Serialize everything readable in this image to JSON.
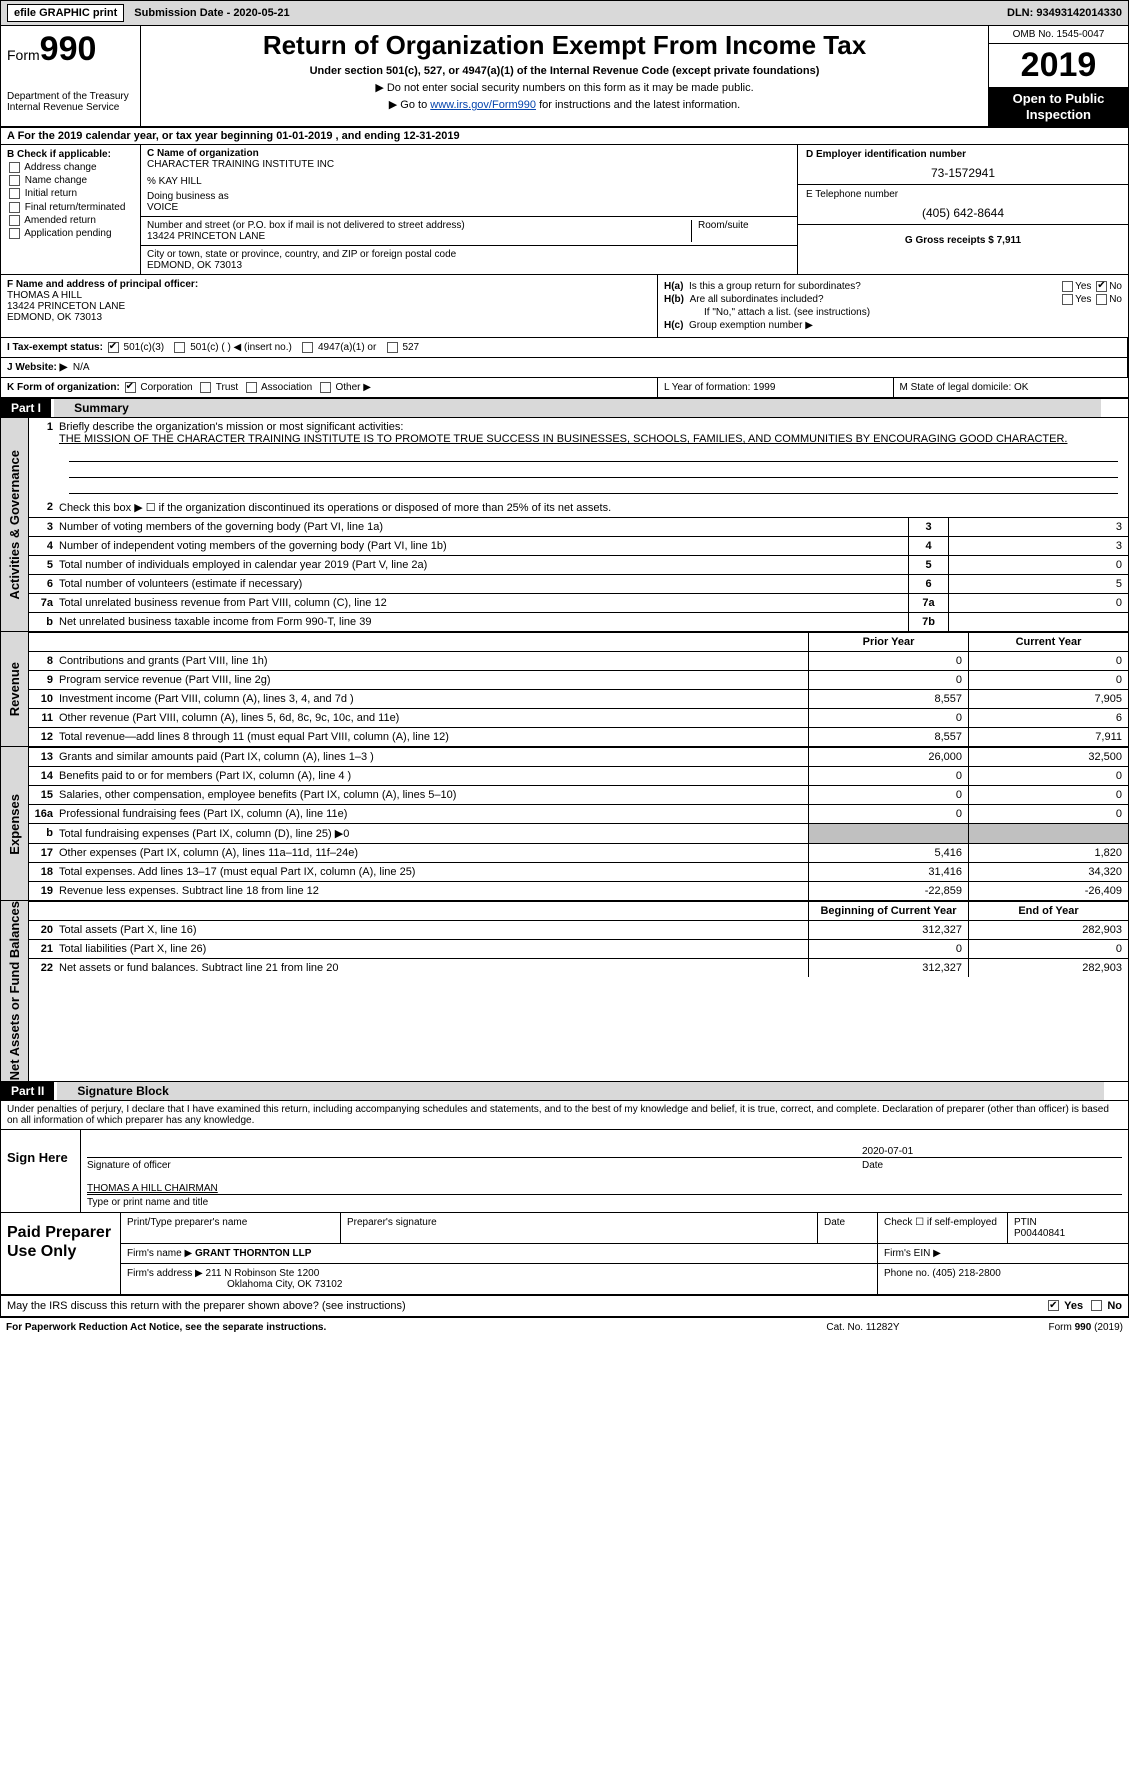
{
  "topbar": {
    "efile_label": "efile GRAPHIC print",
    "submission_label": "Submission Date - 2020-05-21",
    "dln": "DLN: 93493142014330"
  },
  "header": {
    "form_label": "Form",
    "form_number": "990",
    "dept": "Department of the Treasury",
    "irs": "Internal Revenue Service",
    "title": "Return of Organization Exempt From Income Tax",
    "subtitle": "Under section 501(c), 527, or 4947(a)(1) of the Internal Revenue Code (except private foundations)",
    "note1": "▶ Do not enter social security numbers on this form as it may be made public.",
    "note2_prefix": "▶ Go to ",
    "note2_link": "www.irs.gov/Form990",
    "note2_suffix": " for instructions and the latest information.",
    "omb": "OMB No. 1545-0047",
    "tax_year": "2019",
    "open_public": "Open to Public Inspection"
  },
  "row_a": "A   For the 2019 calendar year, or tax year beginning 01-01-2019       , and ending 12-31-2019",
  "col_b": {
    "heading": "B Check if applicable:",
    "opts": [
      "Address change",
      "Name change",
      "Initial return",
      "Final return/terminated",
      "Amended return",
      "Application pending"
    ]
  },
  "col_c": {
    "c_label": "C Name of organization",
    "org_name": "CHARACTER TRAINING INSTITUTE INC",
    "care_of": "% KAY HILL",
    "dba_label": "Doing business as",
    "dba": "VOICE",
    "street_label": "Number and street (or P.O. box if mail is not delivered to street address)",
    "room_label": "Room/suite",
    "street": "13424 PRINCETON LANE",
    "city_label": "City or town, state or province, country, and ZIP or foreign postal code",
    "city": "EDMOND, OK  73013"
  },
  "col_de": {
    "d_label": "D Employer identification number",
    "ein": "73-1572941",
    "e_label": "E Telephone number",
    "phone": "(405) 642-8644",
    "g_label": "G Gross receipts $ 7,911"
  },
  "col_f": {
    "label": "F  Name and address of principal officer:",
    "name": "THOMAS A HILL",
    "street": "13424 PRINCETON LANE",
    "city": "EDMOND, OK  73013"
  },
  "col_h": {
    "ha_label": "H(a)",
    "ha_text": "Is this a group return for subordinates?",
    "hb_label": "H(b)",
    "hb_text": "Are all subordinates included?",
    "hb_note": "If \"No,\" attach a list. (see instructions)",
    "hc_label": "H(c)",
    "hc_text": "Group exemption number ▶",
    "yes": "Yes",
    "no": "No"
  },
  "row_i": {
    "label": "I    Tax-exempt status:",
    "opts": [
      "501(c)(3)",
      "501(c) (  ) ◀ (insert no.)",
      "4947(a)(1) or",
      "527"
    ]
  },
  "row_j": {
    "label": "J   Website: ▶",
    "value": "N/A"
  },
  "row_k": {
    "label": "K Form of organization:",
    "opts": [
      "Corporation",
      "Trust",
      "Association",
      "Other ▶"
    ]
  },
  "col_l": {
    "text": "L Year of formation: 1999"
  },
  "col_m": {
    "text": "M State of legal domicile: OK"
  },
  "part1": {
    "tag": "Part I",
    "title": "Summary"
  },
  "summary": {
    "l1_label": "Briefly describe the organization's mission or most significant activities:",
    "l1_text": "THE MISSION OF THE CHARACTER TRAINING INSTITUTE IS TO PROMOTE TRUE SUCCESS IN BUSINESSES, SCHOOLS, FAMILIES, AND COMMUNITIES BY ENCOURAGING GOOD CHARACTER.",
    "l2": "Check this box ▶ ☐  if the organization discontinued its operations or disposed of more than 25% of its net assets.",
    "l3": {
      "t": "Number of voting members of the governing body (Part VI, line 1a)",
      "n": "3",
      "v": "3"
    },
    "l4": {
      "t": "Number of independent voting members of the governing body (Part VI, line 1b)",
      "n": "4",
      "v": "3"
    },
    "l5": {
      "t": "Total number of individuals employed in calendar year 2019 (Part V, line 2a)",
      "n": "5",
      "v": "0"
    },
    "l6": {
      "t": "Total number of volunteers (estimate if necessary)",
      "n": "6",
      "v": "5"
    },
    "l7a": {
      "t": "Total unrelated business revenue from Part VIII, column (C), line 12",
      "n": "7a",
      "v": "0"
    },
    "l7b": {
      "t": "Net unrelated business taxable income from Form 990-T, line 39",
      "n": "7b",
      "v": ""
    }
  },
  "fin_headers": {
    "prior": "Prior Year",
    "curr": "Current Year",
    "boy": "Beginning of Current Year",
    "eoy": "End of Year"
  },
  "revenue": [
    {
      "n": "8",
      "t": "Contributions and grants (Part VIII, line 1h)",
      "p": "0",
      "c": "0"
    },
    {
      "n": "9",
      "t": "Program service revenue (Part VIII, line 2g)",
      "p": "0",
      "c": "0"
    },
    {
      "n": "10",
      "t": "Investment income (Part VIII, column (A), lines 3, 4, and 7d )",
      "p": "8,557",
      "c": "7,905"
    },
    {
      "n": "11",
      "t": "Other revenue (Part VIII, column (A), lines 5, 6d, 8c, 9c, 10c, and 11e)",
      "p": "0",
      "c": "6"
    },
    {
      "n": "12",
      "t": "Total revenue—add lines 8 through 11 (must equal Part VIII, column (A), line 12)",
      "p": "8,557",
      "c": "7,911"
    }
  ],
  "expenses": [
    {
      "n": "13",
      "t": "Grants and similar amounts paid (Part IX, column (A), lines 1–3 )",
      "p": "26,000",
      "c": "32,500"
    },
    {
      "n": "14",
      "t": "Benefits paid to or for members (Part IX, column (A), line 4 )",
      "p": "0",
      "c": "0"
    },
    {
      "n": "15",
      "t": "Salaries, other compensation, employee benefits (Part IX, column (A), lines 5–10)",
      "p": "0",
      "c": "0"
    },
    {
      "n": "16a",
      "t": "Professional fundraising fees (Part IX, column (A), line 11e)",
      "p": "0",
      "c": "0"
    },
    {
      "n": "b",
      "t": "Total fundraising expenses (Part IX, column (D), line 25) ▶0",
      "p": "",
      "c": "",
      "grey": true
    },
    {
      "n": "17",
      "t": "Other expenses (Part IX, column (A), lines 11a–11d, 11f–24e)",
      "p": "5,416",
      "c": "1,820"
    },
    {
      "n": "18",
      "t": "Total expenses. Add lines 13–17 (must equal Part IX, column (A), line 25)",
      "p": "31,416",
      "c": "34,320"
    },
    {
      "n": "19",
      "t": "Revenue less expenses. Subtract line 18 from line 12",
      "p": "-22,859",
      "c": "-26,409"
    }
  ],
  "netassets": [
    {
      "n": "20",
      "t": "Total assets (Part X, line 16)",
      "p": "312,327",
      "c": "282,903"
    },
    {
      "n": "21",
      "t": "Total liabilities (Part X, line 26)",
      "p": "0",
      "c": "0"
    },
    {
      "n": "22",
      "t": "Net assets or fund balances. Subtract line 21 from line 20",
      "p": "312,327",
      "c": "282,903"
    }
  ],
  "vtabs": {
    "ag": "Activities & Governance",
    "rev": "Revenue",
    "exp": "Expenses",
    "na": "Net Assets or Fund Balances"
  },
  "part2": {
    "tag": "Part II",
    "title": "Signature Block"
  },
  "perjury": "Under penalties of perjury, I declare that I have examined this return, including accompanying schedules and statements, and to the best of my knowledge and belief, it is true, correct, and complete. Declaration of preparer (other than officer) is based on all information of which preparer has any knowledge.",
  "sign": {
    "label": "Sign Here",
    "sig_officer": "Signature of officer",
    "date": "2020-07-01",
    "date_label": "Date",
    "name": "THOMAS A HILL  CHAIRMAN",
    "name_label": "Type or print name and title"
  },
  "paid": {
    "label": "Paid Preparer Use Only",
    "h1": "Print/Type preparer's name",
    "h2": "Preparer's signature",
    "h3": "Date",
    "check_label": "Check ☐ if self-employed",
    "ptin_label": "PTIN",
    "ptin": "P00440841",
    "firm_name_label": "Firm's name  ▶",
    "firm_name": "GRANT THORNTON LLP",
    "firm_ein_label": "Firm's EIN ▶",
    "firm_addr_label": "Firm's address ▶",
    "firm_addr1": "211 N Robinson Ste 1200",
    "firm_addr2": "Oklahoma City, OK  73102",
    "phone_label": "Phone no. (405) 218-2800"
  },
  "may_discuss": "May the IRS discuss this return with the preparer shown above? (see instructions)",
  "footer": {
    "f1": "For Paperwork Reduction Act Notice, see the separate instructions.",
    "f2": "Cat. No. 11282Y",
    "f3": "Form 990 (2019)"
  },
  "colors": {
    "bg_grey": "#d9d9d9",
    "black": "#000000",
    "link": "#0645ad"
  }
}
